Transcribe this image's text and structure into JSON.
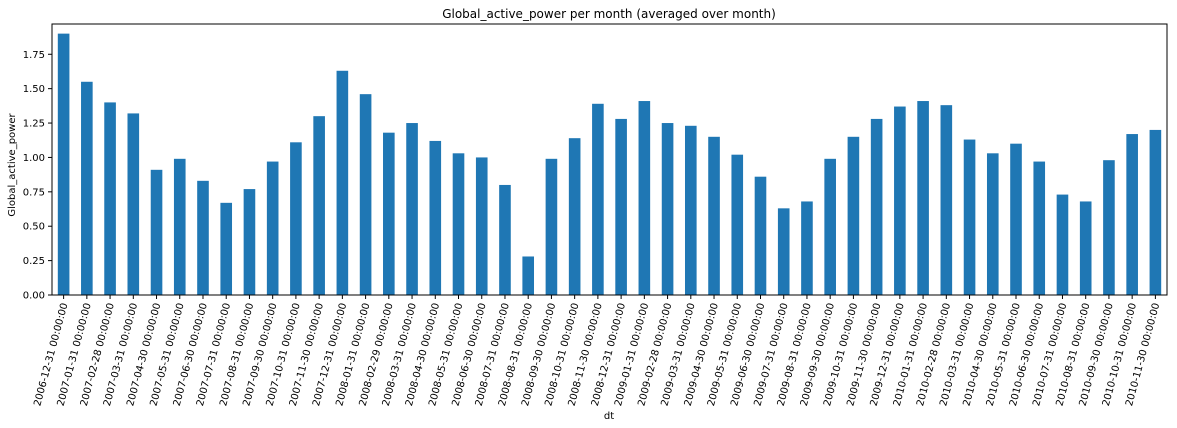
{
  "chart_data": {
    "type": "bar",
    "title": "Global_active_power per month (averaged over month)",
    "xlabel": "dt",
    "ylabel": "Global_active_power",
    "ylim": [
      0,
      1.97
    ],
    "yticks": [
      "0.00",
      "0.25",
      "0.50",
      "0.75",
      "1.00",
      "1.25",
      "1.50",
      "1.75"
    ],
    "bar_color": "#1f77b4",
    "grid": false,
    "categories": [
      "2006-12-31 00:00:00",
      "2007-01-31 00:00:00",
      "2007-02-28 00:00:00",
      "2007-03-31 00:00:00",
      "2007-04-30 00:00:00",
      "2007-05-31 00:00:00",
      "2007-06-30 00:00:00",
      "2007-07-31 00:00:00",
      "2007-08-31 00:00:00",
      "2007-09-30 00:00:00",
      "2007-10-31 00:00:00",
      "2007-11-30 00:00:00",
      "2007-12-31 00:00:00",
      "2008-01-31 00:00:00",
      "2008-02-29 00:00:00",
      "2008-03-31 00:00:00",
      "2008-04-30 00:00:00",
      "2008-05-31 00:00:00",
      "2008-06-30 00:00:00",
      "2008-07-31 00:00:00",
      "2008-08-31 00:00:00",
      "2008-09-30 00:00:00",
      "2008-10-31 00:00:00",
      "2008-11-30 00:00:00",
      "2008-12-31 00:00:00",
      "2009-01-31 00:00:00",
      "2009-02-28 00:00:00",
      "2009-03-31 00:00:00",
      "2009-04-30 00:00:00",
      "2009-05-31 00:00:00",
      "2009-06-30 00:00:00",
      "2009-07-31 00:00:00",
      "2009-08-31 00:00:00",
      "2009-09-30 00:00:00",
      "2009-10-31 00:00:00",
      "2009-11-30 00:00:00",
      "2009-12-31 00:00:00",
      "2010-01-31 00:00:00",
      "2010-02-28 00:00:00",
      "2010-03-31 00:00:00",
      "2010-04-30 00:00:00",
      "2010-05-31 00:00:00",
      "2010-06-30 00:00:00",
      "2010-07-31 00:00:00",
      "2010-08-31 00:00:00",
      "2010-09-30 00:00:00",
      "2010-10-31 00:00:00",
      "2010-11-30 00:00:00"
    ],
    "values": [
      1.9,
      1.55,
      1.4,
      1.32,
      0.91,
      0.99,
      0.83,
      0.67,
      0.77,
      0.97,
      1.11,
      1.3,
      1.63,
      1.46,
      1.18,
      1.25,
      1.12,
      1.03,
      1.0,
      0.8,
      0.28,
      0.99,
      1.14,
      1.39,
      1.28,
      1.41,
      1.25,
      1.23,
      1.15,
      1.02,
      0.86,
      0.63,
      0.68,
      0.99,
      1.15,
      1.28,
      1.37,
      1.41,
      1.38,
      1.13,
      1.03,
      1.1,
      0.97,
      0.73,
      0.68,
      0.98,
      1.17,
      1.2
    ]
  }
}
